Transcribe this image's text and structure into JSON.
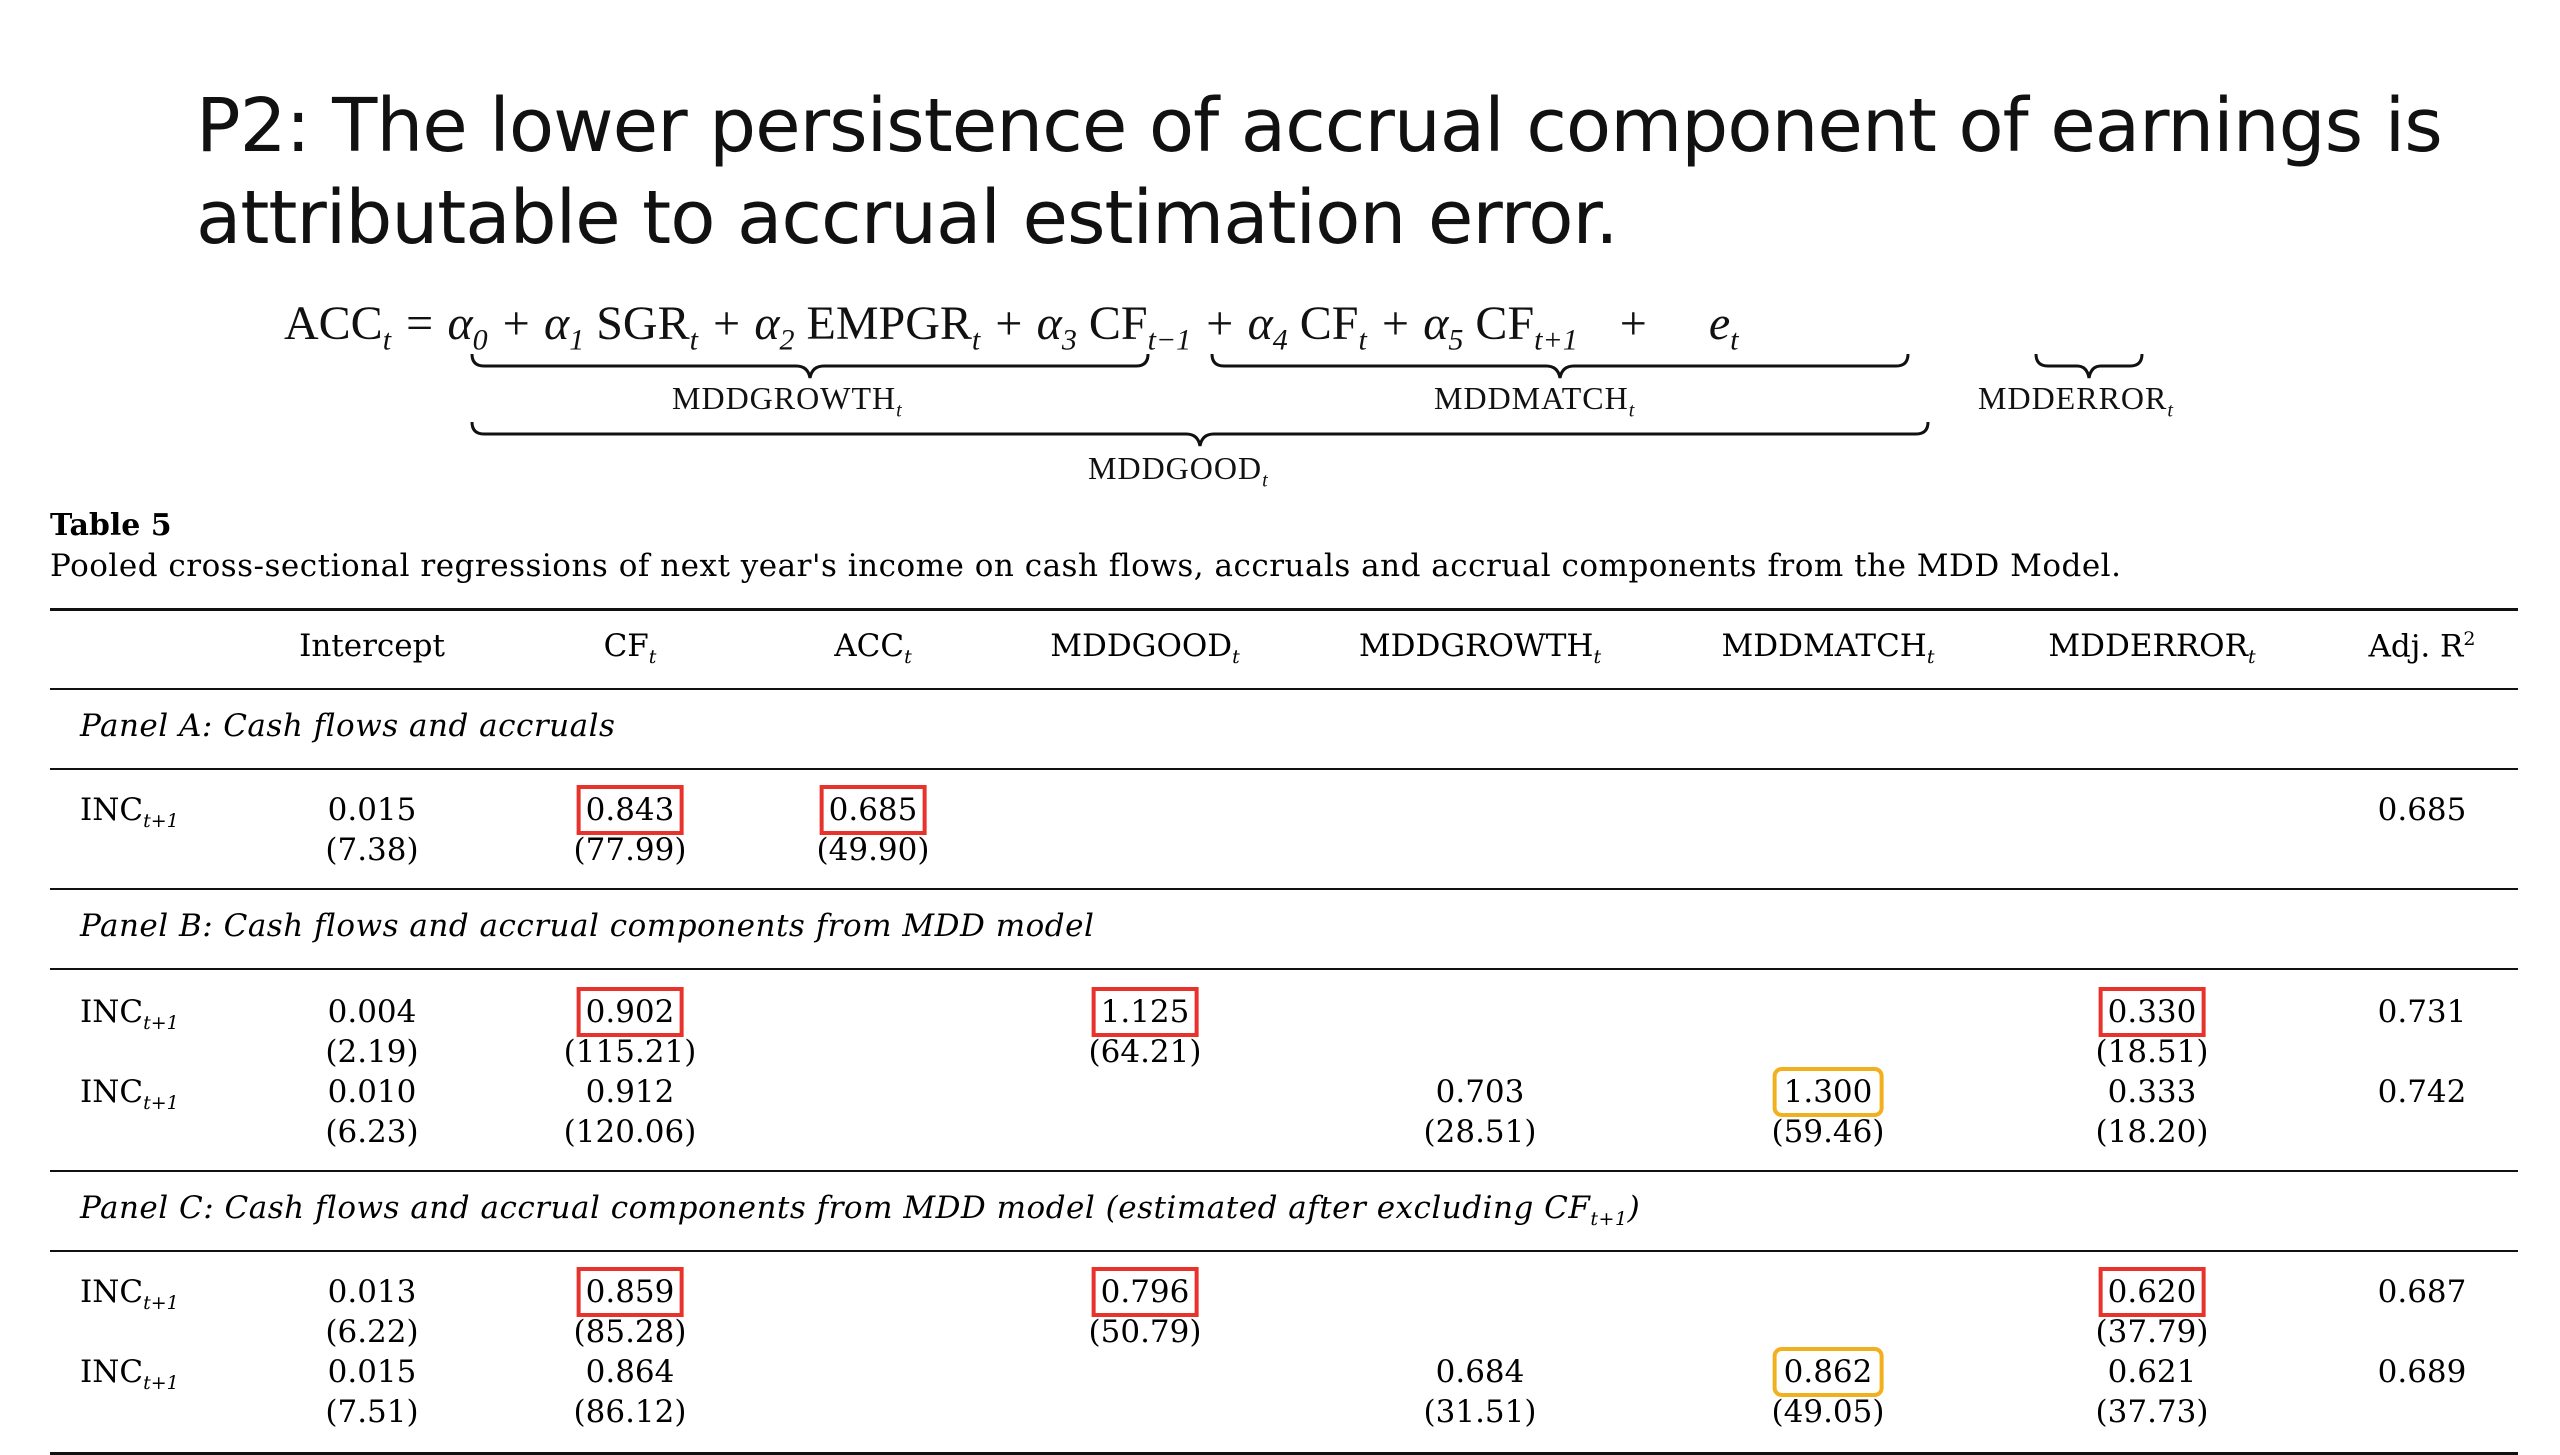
{
  "slide": {
    "title": "P2: The lower persistence of accrual component of earnings is attributable to accrual estimation error."
  },
  "equation": {
    "lhs": "ACC",
    "parts": {
      "p1": "= α",
      "p2": "+ α",
      "p3": "SGR",
      "p4": "+ α",
      "p5": "EMPGR",
      "p6": "+ α",
      "p7": "CF",
      "p8": "+ α",
      "p9": "CF",
      "p10": "+ α",
      "p11": "CF",
      "p12": "+",
      "p13": "e"
    },
    "subscripts": {
      "t": "t",
      "zero": "0",
      "one": "1",
      "two": "2",
      "three": "3",
      "four": "4",
      "five": "5",
      "tm1": "t−1",
      "tp1": "t+1"
    },
    "labels": {
      "growth": "MDDGROWTH",
      "match": "MDDMATCH",
      "error": "MDDERROR",
      "good": "MDDGOOD",
      "sub_t": "t"
    }
  },
  "table": {
    "title": "Table 5",
    "caption": "Pooled cross-sectional regressions of next year's income on cash flows, accruals and accrual components from the MDD Model.",
    "headers": {
      "intercept": "Intercept",
      "cf": "CF",
      "acc": "ACC",
      "good": "MDDGOOD",
      "growth": "MDDGROWTH",
      "match": "MDDMATCH",
      "error": "MDDERROR",
      "adjr2": "Adj. R",
      "sub_t": "t",
      "sup_2": "2"
    },
    "row_label": "INC",
    "row_label_sub": "t+1",
    "panel_a": {
      "title": "Panel A: Cash flows and accruals",
      "r1": {
        "intercept": "0.015",
        "intercept_t": "(7.38)",
        "cf": "0.843",
        "cf_t": "(77.99)",
        "acc": "0.685",
        "acc_t": "(49.90)",
        "adjr2": "0.685"
      }
    },
    "panel_b": {
      "title": "Panel B: Cash flows and accrual components from MDD model",
      "r1": {
        "intercept": "0.004",
        "intercept_t": "(2.19)",
        "cf": "0.902",
        "cf_t": "(115.21)",
        "good": "1.125",
        "good_t": "(64.21)",
        "error": "0.330",
        "error_t": "(18.51)",
        "adjr2": "0.731"
      },
      "r2": {
        "intercept": "0.010",
        "intercept_t": "(6.23)",
        "cf": "0.912",
        "cf_t": "(120.06)",
        "growth": "0.703",
        "growth_t": "(28.51)",
        "match": "1.300",
        "match_t": "(59.46)",
        "error": "0.333",
        "error_t": "(18.20)",
        "adjr2": "0.742"
      }
    },
    "panel_c": {
      "title": "Panel C: Cash flows and accrual components from MDD model (estimated after excluding CF",
      "title_sub": "t+1",
      "title_end": ")",
      "r1": {
        "intercept": "0.013",
        "intercept_t": "(6.22)",
        "cf": "0.859",
        "cf_t": "(85.28)",
        "good": "0.796",
        "good_t": "(50.79)",
        "error": "0.620",
        "error_t": "(37.79)",
        "adjr2": "0.687"
      },
      "r2": {
        "intercept": "0.015",
        "intercept_t": "(7.51)",
        "cf": "0.864",
        "cf_t": "(86.12)",
        "growth": "0.684",
        "growth_t": "(31.51)",
        "match": "0.862",
        "match_t": "(49.05)",
        "error": "0.621",
        "error_t": "(37.73)",
        "adjr2": "0.689"
      }
    }
  },
  "colors": {
    "highlight_red": "#e8332c",
    "highlight_yellow": "#f2b01e"
  }
}
